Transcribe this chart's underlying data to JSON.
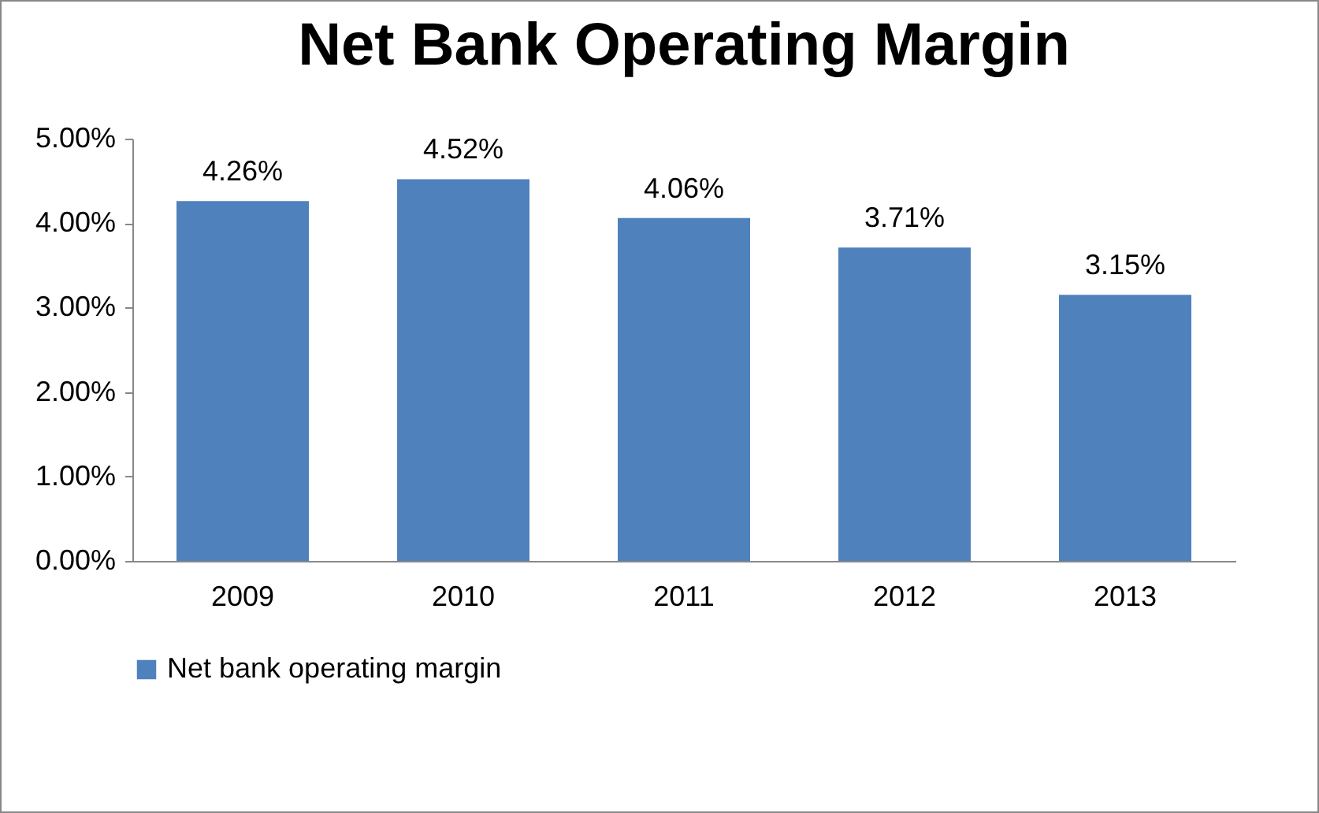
{
  "chart_data": {
    "type": "bar",
    "title": "Net Bank Operating Margin",
    "categories": [
      "2009",
      "2010",
      "2011",
      "2012",
      "2013"
    ],
    "series": [
      {
        "name": "Net bank operating margin",
        "color": "#4f81bd",
        "values": [
          4.26,
          4.52,
          4.06,
          3.71,
          3.15
        ],
        "value_labels": [
          "4.26%",
          "4.52%",
          "4.06%",
          "3.71%",
          "3.15%"
        ]
      }
    ],
    "ylim": [
      0,
      5
    ],
    "yticks": [
      {
        "value": 0,
        "label": "0.00%"
      },
      {
        "value": 1,
        "label": "1.00%"
      },
      {
        "value": 2,
        "label": "2.00%"
      },
      {
        "value": 3,
        "label": "3.00%"
      },
      {
        "value": 4,
        "label": "4.00%"
      },
      {
        "value": 5,
        "label": "5.00%"
      }
    ],
    "grid": false,
    "legend": "bottom"
  }
}
